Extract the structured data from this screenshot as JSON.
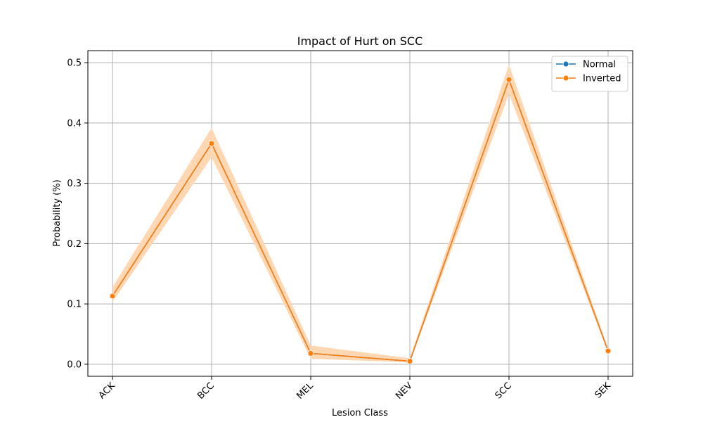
{
  "chart_data": {
    "type": "line",
    "title": "Impact of Hurt on SCC",
    "xlabel": "Lesion Class",
    "ylabel": "Probability (%)",
    "categories": [
      "ACK",
      "BCC",
      "MEL",
      "NEV",
      "SCC",
      "SEK"
    ],
    "ylim": [
      -0.02,
      0.52
    ],
    "yticks": [
      0.0,
      0.1,
      0.2,
      0.3,
      0.4,
      0.5
    ],
    "ytick_labels": [
      "0.0",
      "0.1",
      "0.2",
      "0.3",
      "0.4",
      "0.5"
    ],
    "grid": true,
    "legend_placement": "top-right",
    "series": [
      {
        "name": "Normal",
        "color": "#1f77b4",
        "values": [
          0.113,
          0.366,
          0.018,
          0.005,
          0.472,
          0.022
        ],
        "ci_low": [
          0.113,
          0.366,
          0.018,
          0.005,
          0.472,
          0.022
        ],
        "ci_high": [
          0.113,
          0.366,
          0.018,
          0.005,
          0.472,
          0.022
        ]
      },
      {
        "name": "Inverted",
        "color": "#ff7f0e",
        "band_color": "#ffd8b3",
        "values": [
          0.113,
          0.366,
          0.018,
          0.005,
          0.472,
          0.022
        ],
        "ci_low": [
          0.103,
          0.343,
          0.009,
          0.003,
          0.448,
          0.019
        ],
        "ci_high": [
          0.128,
          0.392,
          0.031,
          0.01,
          0.497,
          0.026
        ]
      }
    ]
  }
}
